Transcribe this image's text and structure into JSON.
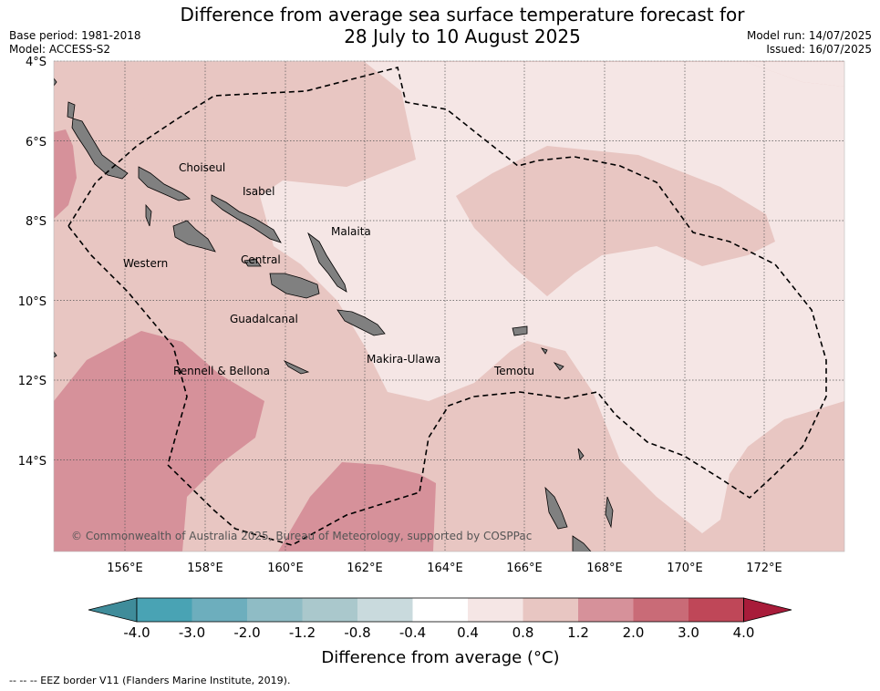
{
  "title_line1": "Difference from average sea surface temperature forecast for",
  "title_line2": "28 July to 10 August 2025",
  "base_period": "Base period: 1981-2018",
  "model": "Model: ACCESS-S2",
  "model_run": "Model run: 14/07/2025",
  "issued": "Issued: 16/07/2025",
  "lat_labels": [
    "4°S",
    "6°S",
    "8°S",
    "10°S",
    "12°S",
    "14°S"
  ],
  "lon_labels": [
    "156°E",
    "158°E",
    "160°E",
    "162°E",
    "164°E",
    "166°E",
    "168°E",
    "170°E",
    "172°E"
  ],
  "provinces": [
    {
      "name": "Choiseul"
    },
    {
      "name": "Isabel"
    },
    {
      "name": "Malaita"
    },
    {
      "name": "Western"
    },
    {
      "name": "Central"
    },
    {
      "name": "Guadalcanal"
    },
    {
      "name": "Makira-Ulawa"
    },
    {
      "name": "Temotu"
    },
    {
      "name": "Rennell & Bellona"
    }
  ],
  "copyright": "© Commonwealth of Australia 2025, Bureau of Meteorology, supported by COSPPac",
  "colorbar": {
    "labels": [
      "-4.0",
      "-3.0",
      "-2.0",
      "-1.2",
      "-0.8",
      "-0.4",
      "0.4",
      "0.8",
      "1.2",
      "2.0",
      "3.0",
      "4.0"
    ],
    "colors": [
      "#49a3b4",
      "#6daebd",
      "#8fbcc5",
      "#aac8cc",
      "#c9dadd",
      "#ffffff",
      "#f5e6e5",
      "#e8c6c2",
      "#d6919a",
      "#c96b77",
      "#bf4758"
    ],
    "low_color": "#3f8c9a",
    "high_color": "#a81c3a",
    "label": "Difference from average (°C)"
  },
  "footer": "--  --  -- EEZ border V11 (Flanders Marine Institute, 2019)."
}
